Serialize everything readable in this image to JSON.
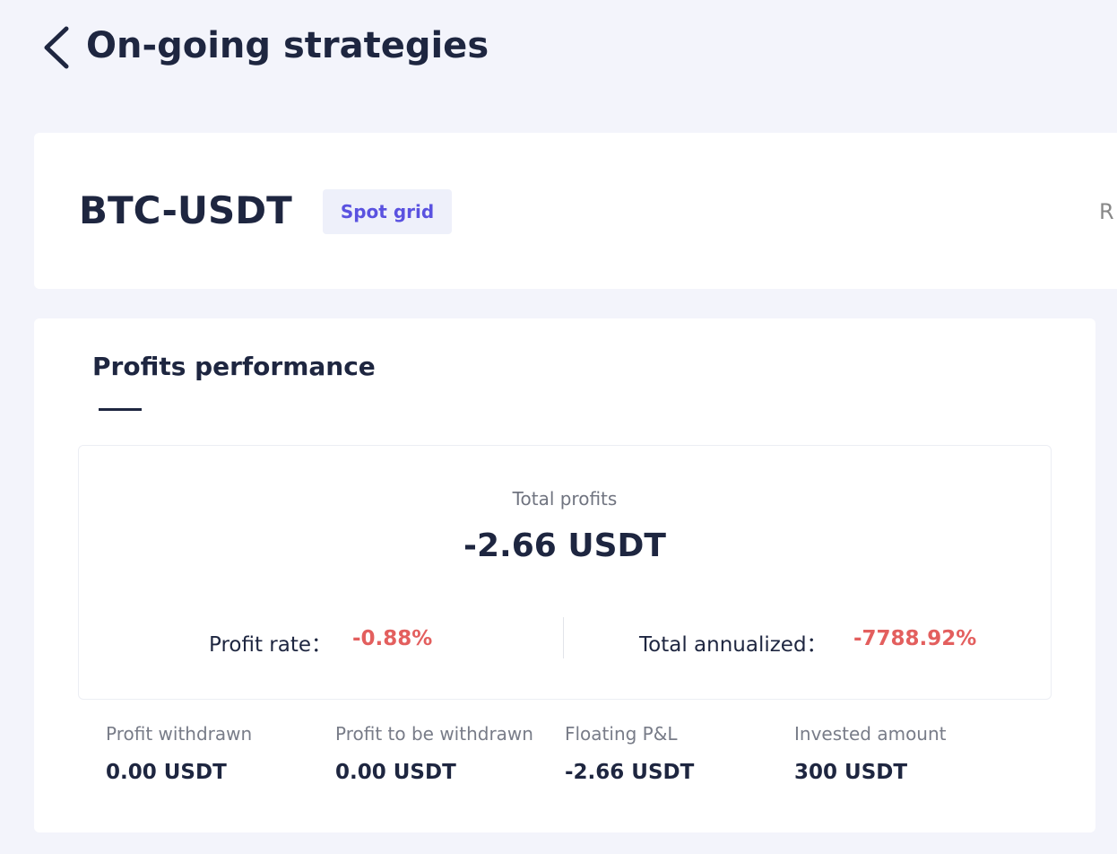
{
  "header": {
    "title": "On-going strategies"
  },
  "strategy": {
    "pair": "BTC-USDT",
    "badge": "Spot grid",
    "cut_off_text": "R"
  },
  "performance": {
    "title": "Profits performance",
    "total_label": "Total profits",
    "total_value": "-2.66 USDT",
    "rate_label": "Profit rate：",
    "rate_value": "-0.88%",
    "annualized_label": "Total annualized：",
    "annualized_value": "-7788.92%",
    "stats": [
      {
        "label": "Profit withdrawn",
        "value": "0.00 USDT"
      },
      {
        "label": "Profit to be withdrawn",
        "value": "0.00 USDT"
      },
      {
        "label": "Floating P&L",
        "value": "-2.66 USDT"
      },
      {
        "label": "Invested amount",
        "value": "300 USDT"
      }
    ]
  }
}
